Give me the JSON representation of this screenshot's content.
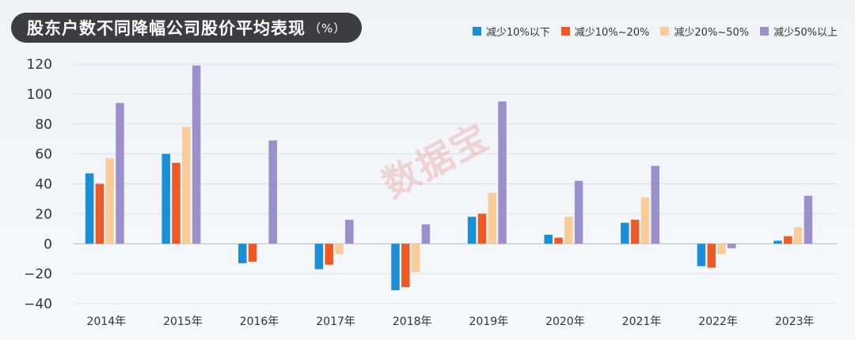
{
  "title": "股东户数不同降幅公司股价平均表现",
  "title_unit": "（%）",
  "watermark": "数据宝",
  "chart_data": {
    "type": "bar",
    "title": "股东户数不同降幅公司股价平均表现",
    "unit": "（%）",
    "categories": [
      "2014年",
      "2015年",
      "2016年",
      "2017年",
      "2018年",
      "2019年",
      "2020年",
      "2021年",
      "2022年",
      "2023年"
    ],
    "series": [
      {
        "name": "减少10%以下",
        "color": "#1a8fd6",
        "values": [
          47,
          60,
          -13,
          -17,
          -31,
          18,
          6,
          14,
          -15,
          2
        ]
      },
      {
        "name": "减少10%~20%",
        "color": "#ef5a24",
        "values": [
          40,
          54,
          -12,
          -14,
          -29,
          20,
          4,
          16,
          -16,
          5
        ]
      },
      {
        "name": "减少20%~50%",
        "color": "#fbcc98",
        "values": [
          57,
          78,
          0,
          -7,
          -19,
          34,
          18,
          31,
          -7,
          11
        ]
      },
      {
        "name": "减少50%以上",
        "color": "#9b8fcc",
        "values": [
          94,
          119,
          69,
          16,
          13,
          95,
          42,
          52,
          -3,
          32
        ]
      }
    ],
    "ylim": [
      -40,
      120
    ],
    "yticks": [
      -40,
      -20,
      0,
      20,
      40,
      60,
      80,
      100,
      120
    ],
    "ytick_labels": [
      "−40",
      "−20",
      "0",
      "20",
      "40",
      "60",
      "80",
      "100",
      "120"
    ],
    "grid": true,
    "legend": "top-right"
  }
}
